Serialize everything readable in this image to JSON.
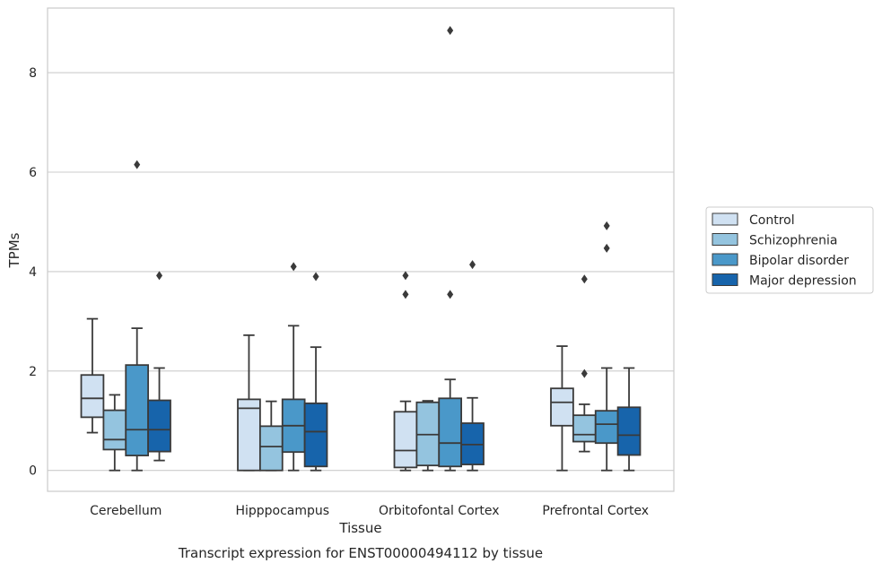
{
  "chart_data": {
    "type": "box",
    "title": "",
    "caption": "Transcript expression for ENST00000494112 by tissue",
    "xlabel": "Tissue",
    "ylabel": "TPMs",
    "ylim": [
      -0.42,
      9.3
    ],
    "yticks": [
      "0",
      "2",
      "4",
      "6",
      "8"
    ],
    "grid": "horizontal",
    "legend_position": "right",
    "categories": [
      "Cerebellum",
      "Hipppocampus",
      "Orbitofontal Cortex",
      "Prefrontal Cortex"
    ],
    "series": [
      {
        "name": "Control",
        "color": "#d0e1f2",
        "boxes": [
          {
            "whislo": 0.76,
            "q1": 1.07,
            "med": 1.45,
            "q3": 1.92,
            "whishi": 3.05,
            "fliers": []
          },
          {
            "whislo": 0.0,
            "q1": 0.0,
            "med": 1.25,
            "q3": 1.43,
            "whishi": 2.72,
            "fliers": []
          },
          {
            "whislo": 0.0,
            "q1": 0.06,
            "med": 0.4,
            "q3": 1.18,
            "whishi": 1.39,
            "fliers": [
              3.54,
              3.92
            ]
          },
          {
            "whislo": 0.0,
            "q1": 0.9,
            "med": 1.37,
            "q3": 1.65,
            "whishi": 2.5,
            "fliers": []
          }
        ]
      },
      {
        "name": "Schizophrenia",
        "color": "#94c4df",
        "boxes": [
          {
            "whislo": 0.0,
            "q1": 0.42,
            "med": 0.62,
            "q3": 1.21,
            "whishi": 1.52,
            "fliers": []
          },
          {
            "whislo": 0.0,
            "q1": 0.0,
            "med": 0.48,
            "q3": 0.89,
            "whishi": 1.39,
            "fliers": []
          },
          {
            "whislo": 0.0,
            "q1": 0.1,
            "med": 0.72,
            "q3": 1.37,
            "whishi": 1.4,
            "fliers": []
          },
          {
            "whislo": 0.38,
            "q1": 0.58,
            "med": 0.72,
            "q3": 1.11,
            "whishi": 1.33,
            "fliers": [
              1.95,
              3.85
            ]
          }
        ]
      },
      {
        "name": "Bipolar disorder",
        "color": "#4a98c9",
        "boxes": [
          {
            "whislo": 0.0,
            "q1": 0.3,
            "med": 0.82,
            "q3": 2.12,
            "whishi": 2.86,
            "fliers": [
              6.15
            ]
          },
          {
            "whislo": 0.0,
            "q1": 0.37,
            "med": 0.9,
            "q3": 1.43,
            "whishi": 2.91,
            "fliers": [
              4.1
            ]
          },
          {
            "whislo": 0.0,
            "q1": 0.08,
            "med": 0.55,
            "q3": 1.45,
            "whishi": 1.83,
            "fliers": [
              3.54,
              8.85
            ]
          },
          {
            "whislo": 0.0,
            "q1": 0.55,
            "med": 0.93,
            "q3": 1.2,
            "whishi": 2.06,
            "fliers": [
              4.47,
              4.92
            ]
          }
        ]
      },
      {
        "name": "Major depression",
        "color": "#1764ab",
        "boxes": [
          {
            "whislo": 0.2,
            "q1": 0.38,
            "med": 0.82,
            "q3": 1.41,
            "whishi": 2.06,
            "fliers": [
              3.92
            ]
          },
          {
            "whislo": 0.0,
            "q1": 0.08,
            "med": 0.78,
            "q3": 1.35,
            "whishi": 2.48,
            "fliers": [
              3.9
            ]
          },
          {
            "whislo": 0.0,
            "q1": 0.12,
            "med": 0.52,
            "q3": 0.95,
            "whishi": 1.46,
            "fliers": [
              4.14
            ]
          },
          {
            "whislo": 0.0,
            "q1": 0.31,
            "med": 0.71,
            "q3": 1.27,
            "whishi": 2.06,
            "fliers": []
          }
        ]
      }
    ]
  }
}
